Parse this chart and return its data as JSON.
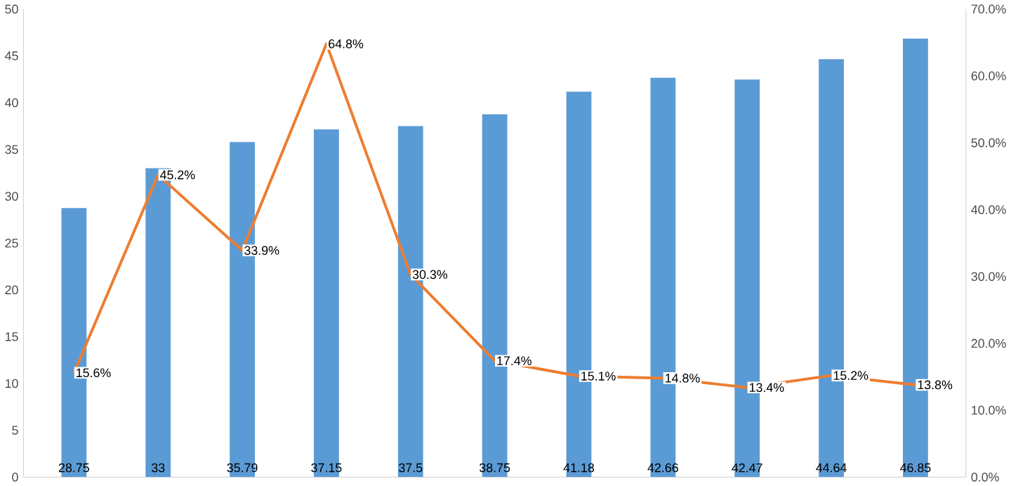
{
  "chart_data": {
    "type": "bar",
    "categories": [
      null,
      null,
      null,
      null,
      null,
      null,
      null,
      null,
      null,
      null,
      null
    ],
    "series": [
      {
        "color": "#5b9bd5",
        "values": [
          28.75,
          33,
          35.79,
          37.15,
          37.5,
          38.75,
          41.18,
          42.66,
          42.47,
          44.64,
          46.85
        ]
      },
      {
        "type": "line",
        "axis": "y2",
        "color": "#ed7d31",
        "values": [
          15.6,
          45.2,
          33.9,
          64.8,
          30.3,
          17.4,
          15.1,
          14.8,
          13.4,
          15.2,
          13.8
        ],
        "value_labels": [
          "15.6%",
          "45.2%",
          "33.9%",
          "64.8%",
          "30.3%",
          "17.4%",
          "15.1%",
          "14.8%",
          "13.4%",
          "15.2%",
          "13.8%"
        ]
      }
    ],
    "data_labels": true,
    "ylim": [
      0,
      50
    ],
    "yticks": [
      0,
      5,
      10,
      15,
      20,
      25,
      30,
      35,
      40,
      45,
      50
    ],
    "y2lim": [
      0,
      70
    ],
    "y2ticks": [
      {
        "value": 0,
        "label": "0.0%"
      },
      {
        "value": 10,
        "label": "10.0%"
      },
      {
        "value": 20,
        "label": "20.0%"
      },
      {
        "value": 30,
        "label": "30.0%"
      },
      {
        "value": 40,
        "label": "40.0%"
      },
      {
        "value": 50,
        "label": "50.0%"
      },
      {
        "value": 60,
        "label": "60.0%"
      },
      {
        "value": 70,
        "label": "70.0%"
      }
    ],
    "grid": false
  }
}
